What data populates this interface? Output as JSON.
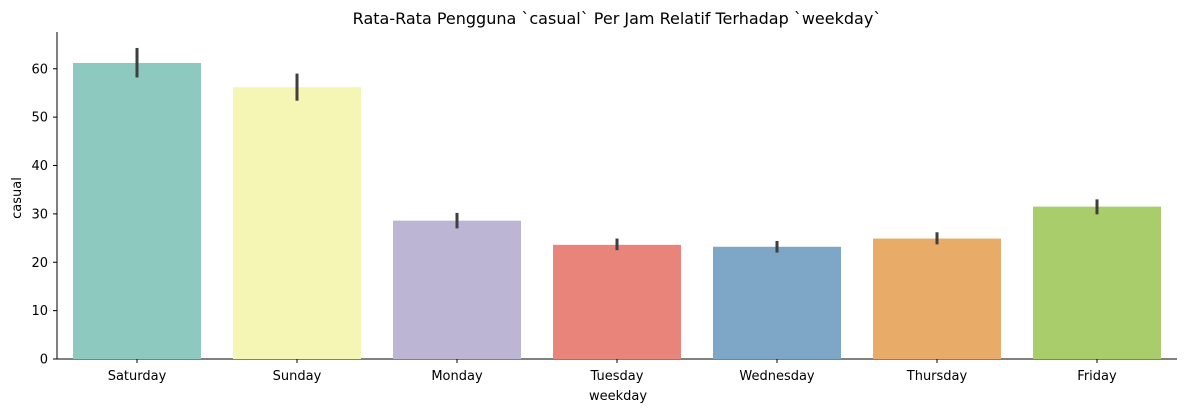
{
  "chart_data": {
    "type": "bar",
    "title": "Rata-Rata Pengguna `casual` Per Jam Relatif Terhadap `weekday`",
    "xlabel": "weekday",
    "ylabel": "casual",
    "categories": [
      "Saturday",
      "Sunday",
      "Monday",
      "Tuesday",
      "Wednesday",
      "Thursday",
      "Friday"
    ],
    "values": [
      61.2,
      56.2,
      28.6,
      23.6,
      23.2,
      24.9,
      31.5
    ],
    "error_low": [
      58.2,
      53.4,
      27.0,
      22.5,
      22.0,
      23.7,
      29.9
    ],
    "error_high": [
      64.3,
      59.0,
      30.2,
      24.9,
      24.4,
      26.2,
      33.0
    ],
    "colors": [
      "#8dc9bf",
      "#f6f6b4",
      "#bcb6d4",
      "#e8847a",
      "#7ea6c6",
      "#e8ab68",
      "#a9cd6a"
    ],
    "error_color": "#3f3f3f",
    "ylim": [
      0,
      67.6
    ],
    "yticks": [
      "0",
      "10",
      "20",
      "30",
      "40",
      "50",
      "60"
    ],
    "grid": false,
    "legend": "none"
  }
}
